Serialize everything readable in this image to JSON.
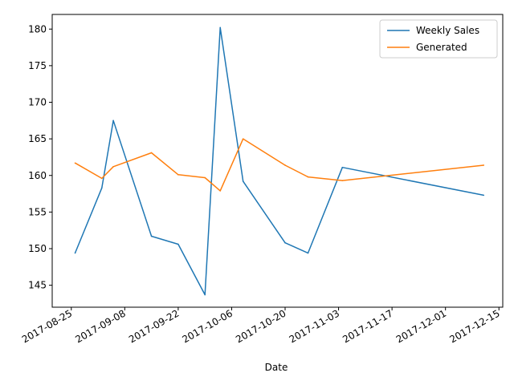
{
  "chart_data": {
    "type": "line",
    "title": "",
    "xlabel": "Date",
    "ylabel": "",
    "x_ticks": [
      "2017-08-25",
      "2017-09-08",
      "2017-09-22",
      "2017-10-06",
      "2017-10-20",
      "2017-11-03",
      "2017-11-17",
      "2017-12-01",
      "2017-12-15"
    ],
    "y_ticks": [
      145,
      150,
      155,
      160,
      165,
      170,
      175,
      180
    ],
    "xlim": [
      "2017-08-20",
      "2017-12-16"
    ],
    "ylim": [
      142.0,
      182.0
    ],
    "grid": false,
    "legend_position": "top-right",
    "series": [
      {
        "name": "Weekly Sales",
        "color": "#1f77b4",
        "points": [
          [
            "2017-08-26",
            149.4
          ],
          [
            "2017-09-02",
            158.3
          ],
          [
            "2017-09-05",
            167.5
          ],
          [
            "2017-09-15",
            151.7
          ],
          [
            "2017-09-22",
            150.6
          ],
          [
            "2017-09-29",
            143.7
          ],
          [
            "2017-10-03",
            180.2
          ],
          [
            "2017-10-09",
            159.2
          ],
          [
            "2017-10-20",
            150.8
          ],
          [
            "2017-10-26",
            149.4
          ],
          [
            "2017-11-04",
            161.1
          ],
          [
            "2017-12-11",
            157.3
          ]
        ]
      },
      {
        "name": "Generated",
        "color": "#ff7f0e",
        "points": [
          [
            "2017-08-26",
            161.7
          ],
          [
            "2017-09-02",
            159.6
          ],
          [
            "2017-09-05",
            161.2
          ],
          [
            "2017-09-15",
            163.1
          ],
          [
            "2017-09-22",
            160.1
          ],
          [
            "2017-09-29",
            159.7
          ],
          [
            "2017-10-03",
            157.9
          ],
          [
            "2017-10-09",
            165.0
          ],
          [
            "2017-10-20",
            161.4
          ],
          [
            "2017-10-26",
            159.8
          ],
          [
            "2017-11-04",
            159.3
          ],
          [
            "2017-12-11",
            161.4
          ]
        ]
      }
    ]
  }
}
